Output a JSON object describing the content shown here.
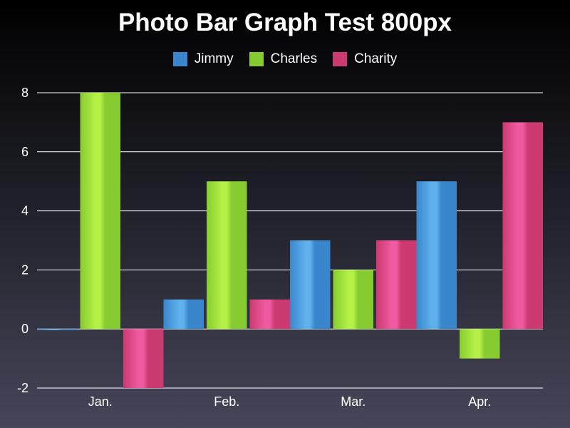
{
  "chart_data": {
    "type": "bar",
    "title": "Photo Bar Graph Test 800px",
    "categories": [
      "Jan.",
      "Feb.",
      "Mar.",
      "Apr."
    ],
    "series": [
      {
        "name": "Jimmy",
        "color": "#3a86cc",
        "light": "#5fb0ec",
        "values": [
          0,
          1,
          3,
          5
        ]
      },
      {
        "name": "Charles",
        "color": "#86cc30",
        "light": "#b4f046",
        "values": [
          8,
          5,
          2,
          -1
        ]
      },
      {
        "name": "Charity",
        "color": "#cc3a72",
        "light": "#f05aa0",
        "values": [
          -2,
          1,
          3,
          7
        ]
      }
    ],
    "ylim": [
      -2,
      8
    ],
    "yticks": [
      -2,
      0,
      2,
      4,
      6,
      8
    ],
    "ytick_labels": [
      "-2",
      "0",
      "2",
      "4",
      "6",
      "8"
    ],
    "grid": true,
    "legend_position": "top-center"
  }
}
